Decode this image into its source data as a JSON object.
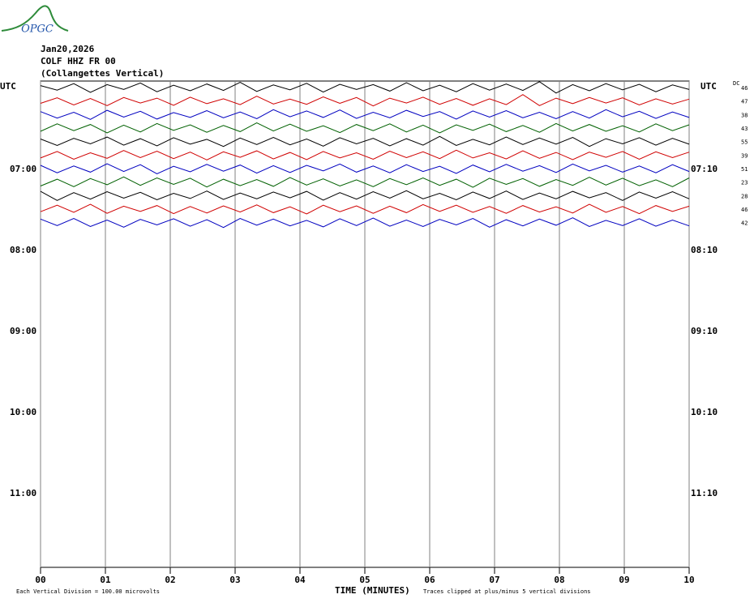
{
  "logo": "OPGC",
  "chart_data": {
    "type": "helicorder",
    "title_lines": [
      "Jan20,2026",
      "COLF HHZ FR 00",
      "(Collangettes Vertical)"
    ],
    "left_axis_title": "UTC",
    "right_axis_title": "UTC",
    "dc_title": "DC",
    "row_labels_left": [
      "07:00",
      "08:00",
      "09:00",
      "10:00",
      "11:00"
    ],
    "row_labels_right": [
      "07:10",
      "08:10",
      "09:10",
      "10:10",
      "11:10"
    ],
    "xlabel": "TIME (MINUTES)",
    "xlim": [
      0,
      10
    ],
    "xticks": [
      {
        "value": 0,
        "label": "00"
      },
      {
        "value": 1,
        "label": "01"
      },
      {
        "value": 2,
        "label": "02"
      },
      {
        "value": 3,
        "label": "03"
      },
      {
        "value": 4,
        "label": "04"
      },
      {
        "value": 5,
        "label": "05"
      },
      {
        "value": 6,
        "label": "06"
      },
      {
        "value": 7,
        "label": "07"
      },
      {
        "value": 8,
        "label": "08"
      },
      {
        "value": 9,
        "label": "09"
      },
      {
        "value": 10,
        "label": "10"
      }
    ],
    "grid": true,
    "footnote_left": "Each Vertical Division =  100.00 microvolts",
    "footnote_right": "Traces clipped at plus/minus 5 vertical divisions",
    "series": [
      {
        "color": "#000000",
        "dc": "46",
        "values": [
          60,
          -80,
          120,
          -150,
          90,
          -60,
          140,
          -130,
          70,
          -100,
          110,
          -90,
          160,
          -120,
          80,
          -70,
          130,
          -140,
          100,
          -60,
          90,
          -110,
          150,
          -100,
          70,
          -130,
          120,
          -80,
          110,
          -90,
          180,
          -170,
          90,
          -100,
          120,
          -70,
          100,
          -130,
          80,
          -60
        ]
      },
      {
        "color": "#d00000",
        "dc": "47",
        "values": [
          -70,
          100,
          -120,
          80,
          -140,
          110,
          -60,
          90,
          -130,
          120,
          -80,
          70,
          -110,
          150,
          -90,
          60,
          -100,
          130,
          -70,
          110,
          -150,
          90,
          -60,
          120,
          -100,
          80,
          -130,
          70,
          -110,
          200,
          -140,
          90,
          -80,
          110,
          -60,
          100,
          -120,
          70,
          -90,
          60
        ]
      },
      {
        "color": "#0000c0",
        "dc": "38",
        "values": [
          90,
          -110,
          70,
          -150,
          130,
          -80,
          100,
          -140,
          60,
          -90,
          120,
          -100,
          80,
          -130,
          150,
          -70,
          110,
          -90,
          140,
          -120,
          70,
          -100,
          130,
          -60,
          90,
          -140,
          110,
          -80,
          120,
          -100,
          70,
          -130,
          90,
          -110,
          150,
          -70,
          100,
          -120,
          80,
          -90
        ]
      },
      {
        "color": "#006000",
        "dc": "43",
        "values": [
          -100,
          130,
          -80,
          110,
          -150,
          90,
          -120,
          140,
          -70,
          100,
          -130,
          80,
          -110,
          160,
          -90,
          120,
          -100,
          70,
          -140,
          110,
          -80,
          130,
          -120,
          90,
          -150,
          100,
          -70,
          120,
          -110,
          80,
          -130,
          140,
          -90,
          110,
          -100,
          70,
          -120,
          130,
          -80,
          100
        ]
      },
      {
        "color": "#000000",
        "dc": "55",
        "values": [
          80,
          -120,
          100,
          -70,
          140,
          -110,
          90,
          -130,
          120,
          -80,
          70,
          -150,
          110,
          -90,
          130,
          -100,
          80,
          -140,
          120,
          -70,
          100,
          -130,
          90,
          -110,
          160,
          -120,
          70,
          -100,
          140,
          -90,
          110,
          -80,
          130,
          -150,
          90,
          -70,
          120,
          -110,
          100,
          -80
        ]
      },
      {
        "color": "#d00000",
        "dc": "39",
        "values": [
          -90,
          110,
          -130,
          70,
          -100,
          140,
          -80,
          120,
          -110,
          90,
          -150,
          100,
          -70,
          130,
          -120,
          80,
          -140,
          110,
          -90,
          70,
          -130,
          120,
          -80,
          100,
          -110,
          150,
          -90,
          70,
          -120,
          130,
          -100,
          80,
          -140,
          90,
          -70,
          110,
          -130,
          100,
          -80,
          90
        ]
      },
      {
        "color": "#0000c0",
        "dc": "51",
        "values": [
          100,
          -130,
          80,
          -110,
          150,
          -90,
          120,
          -160,
          70,
          -100,
          130,
          -80,
          110,
          -140,
          90,
          -120,
          100,
          -70,
          140,
          -110,
          80,
          -130,
          120,
          -90,
          70,
          -150,
          110,
          -100,
          130,
          -80,
          90,
          -120,
          140,
          -70,
          100,
          -110,
          80,
          -130,
          120,
          -90
        ]
      },
      {
        "color": "#006000",
        "dc": "23",
        "values": [
          -120,
          90,
          -140,
          110,
          -80,
          160,
          -100,
          130,
          -70,
          120,
          -150,
          90,
          -110,
          80,
          -130,
          140,
          -90,
          100,
          -120,
          70,
          -140,
          110,
          -80,
          130,
          -100,
          90,
          -160,
          120,
          -70,
          110,
          -130,
          80,
          -100,
          150,
          -90,
          120,
          -110,
          70,
          -140,
          130
        ]
      },
      {
        "color": "#000000",
        "dc": "28",
        "values": [
          130,
          -150,
          90,
          -110,
          120,
          -80,
          100,
          -130,
          70,
          -90,
          140,
          -120,
          80,
          -100,
          110,
          -70,
          130,
          -140,
          90,
          -110,
          120,
          -80,
          150,
          -100,
          70,
          -130,
          110,
          -90,
          140,
          -120,
          80,
          -100,
          130,
          -70,
          90,
          -150,
          110,
          -80,
          120,
          -100
        ]
      },
      {
        "color": "#d00000",
        "dc": "46",
        "values": [
          -80,
          120,
          -100,
          150,
          -130,
          90,
          -70,
          110,
          -140,
          80,
          -120,
          100,
          -90,
          130,
          -110,
          70,
          -150,
          120,
          -80,
          100,
          -130,
          90,
          -110,
          140,
          -70,
          120,
          -100,
          80,
          -130,
          110,
          -90,
          70,
          -120,
          150,
          -100,
          80,
          -140,
          110,
          -70,
          90
        ]
      },
      {
        "color": "#0000c0",
        "dc": "42",
        "values": [
          110,
          -90,
          130,
          -120,
          80,
          -140,
          100,
          -70,
          120,
          -110,
          90,
          -150,
          130,
          -80,
          110,
          -100,
          70,
          -130,
          120,
          -90,
          140,
          -110,
          80,
          -120,
          100,
          -70,
          130,
          -140,
          90,
          -100,
          110,
          -80,
          150,
          -120,
          70,
          -90,
          120,
          -110,
          80,
          -100
        ]
      }
    ]
  }
}
